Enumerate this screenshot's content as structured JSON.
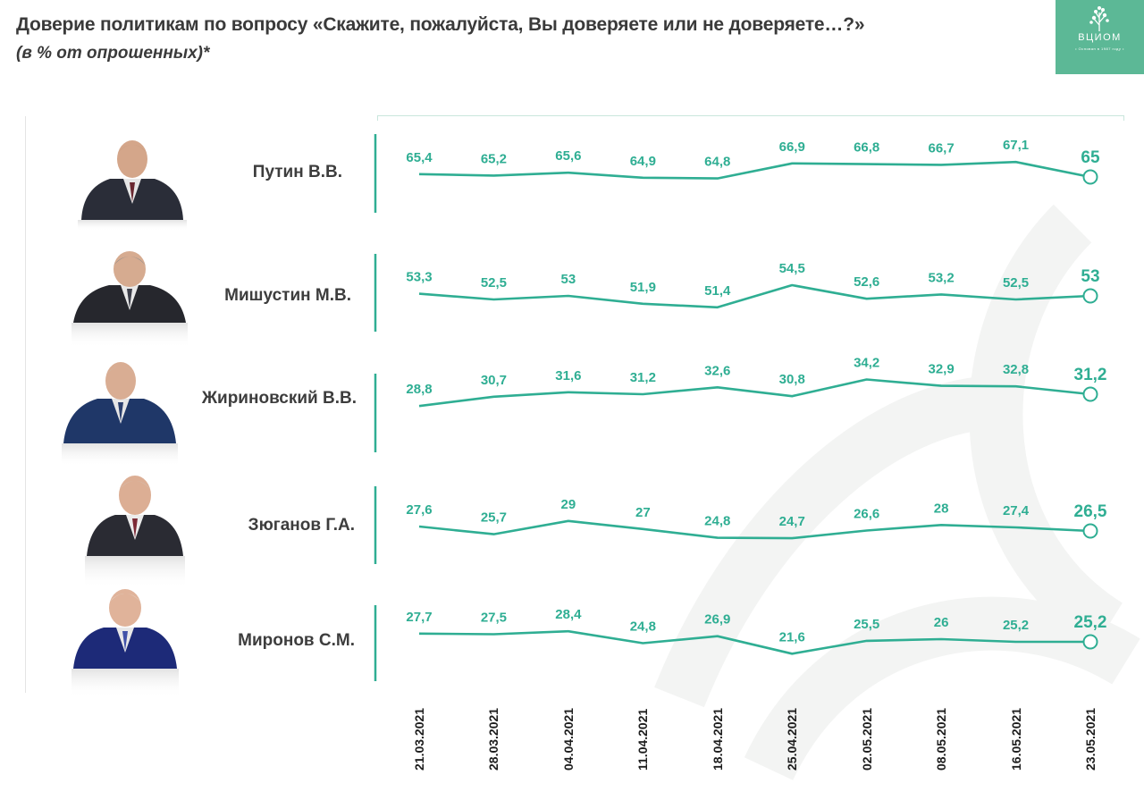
{
  "header": {
    "title": "Доверие политикам по вопросу «Скажите, пожалуйста, Вы доверяете или не доверяете…?»",
    "subtitle": "(в % от опрошенных)*"
  },
  "logo": {
    "name": "ВЦИОМ",
    "tagline": "• Основан в 1987 году •",
    "brand_color": "#5cb896",
    "icon": "tree-icon"
  },
  "colors": {
    "series": "#2fae93",
    "text": "#3d3d3d"
  },
  "chart_data": {
    "type": "line",
    "title": "Доверие политикам по вопросу «Скажите, пожалуйста, Вы доверяете или не доверяете…?»",
    "subtitle": "(в % от опрошенных)*",
    "x": [
      "21.03.2021",
      "28.03.2021",
      "04.04.2021",
      "11.04.2021",
      "18.04.2021",
      "25.04.2021",
      "02.05.2021",
      "08.05.2021",
      "16.05.2021",
      "23.05.2021"
    ],
    "series": [
      {
        "name": "Путин В.В.",
        "values": [
          65.4,
          65.2,
          65.6,
          64.9,
          64.8,
          66.9,
          66.8,
          66.7,
          67.1,
          65
        ],
        "labels": [
          "65,4",
          "65,2",
          "65,6",
          "64,9",
          "64,8",
          "66,9",
          "66,8",
          "66,7",
          "67,1",
          "65"
        ]
      },
      {
        "name": "Мишустин М.В.",
        "values": [
          53.3,
          52.5,
          53,
          51.9,
          51.4,
          54.5,
          52.6,
          53.2,
          52.5,
          53
        ],
        "labels": [
          "53,3",
          "52,5",
          "53",
          "51,9",
          "51,4",
          "54,5",
          "52,6",
          "53,2",
          "52,5",
          "53"
        ]
      },
      {
        "name": "Жириновский В.В.",
        "values": [
          28.8,
          30.7,
          31.6,
          31.2,
          32.6,
          30.8,
          34.2,
          32.9,
          32.8,
          31.2
        ],
        "labels": [
          "28,8",
          "30,7",
          "31,6",
          "31,2",
          "32,6",
          "30,8",
          "34,2",
          "32,9",
          "32,8",
          "31,2"
        ]
      },
      {
        "name": "Зюганов Г.А.",
        "values": [
          27.6,
          25.7,
          29,
          27,
          24.8,
          24.7,
          26.6,
          28,
          27.4,
          26.5
        ],
        "labels": [
          "27,6",
          "25,7",
          "29",
          "27",
          "24,8",
          "24,7",
          "26,6",
          "28",
          "27,4",
          "26,5"
        ]
      },
      {
        "name": "Миронов С.М.",
        "values": [
          27.7,
          27.5,
          28.4,
          24.8,
          26.9,
          21.6,
          25.5,
          26,
          25.2,
          25.2
        ],
        "labels": [
          "27,7",
          "27,5",
          "28,4",
          "24,8",
          "26,9",
          "21,6",
          "25,5",
          "26",
          "25,2",
          "25,2"
        ]
      }
    ],
    "grid": false,
    "legend": "none"
  }
}
